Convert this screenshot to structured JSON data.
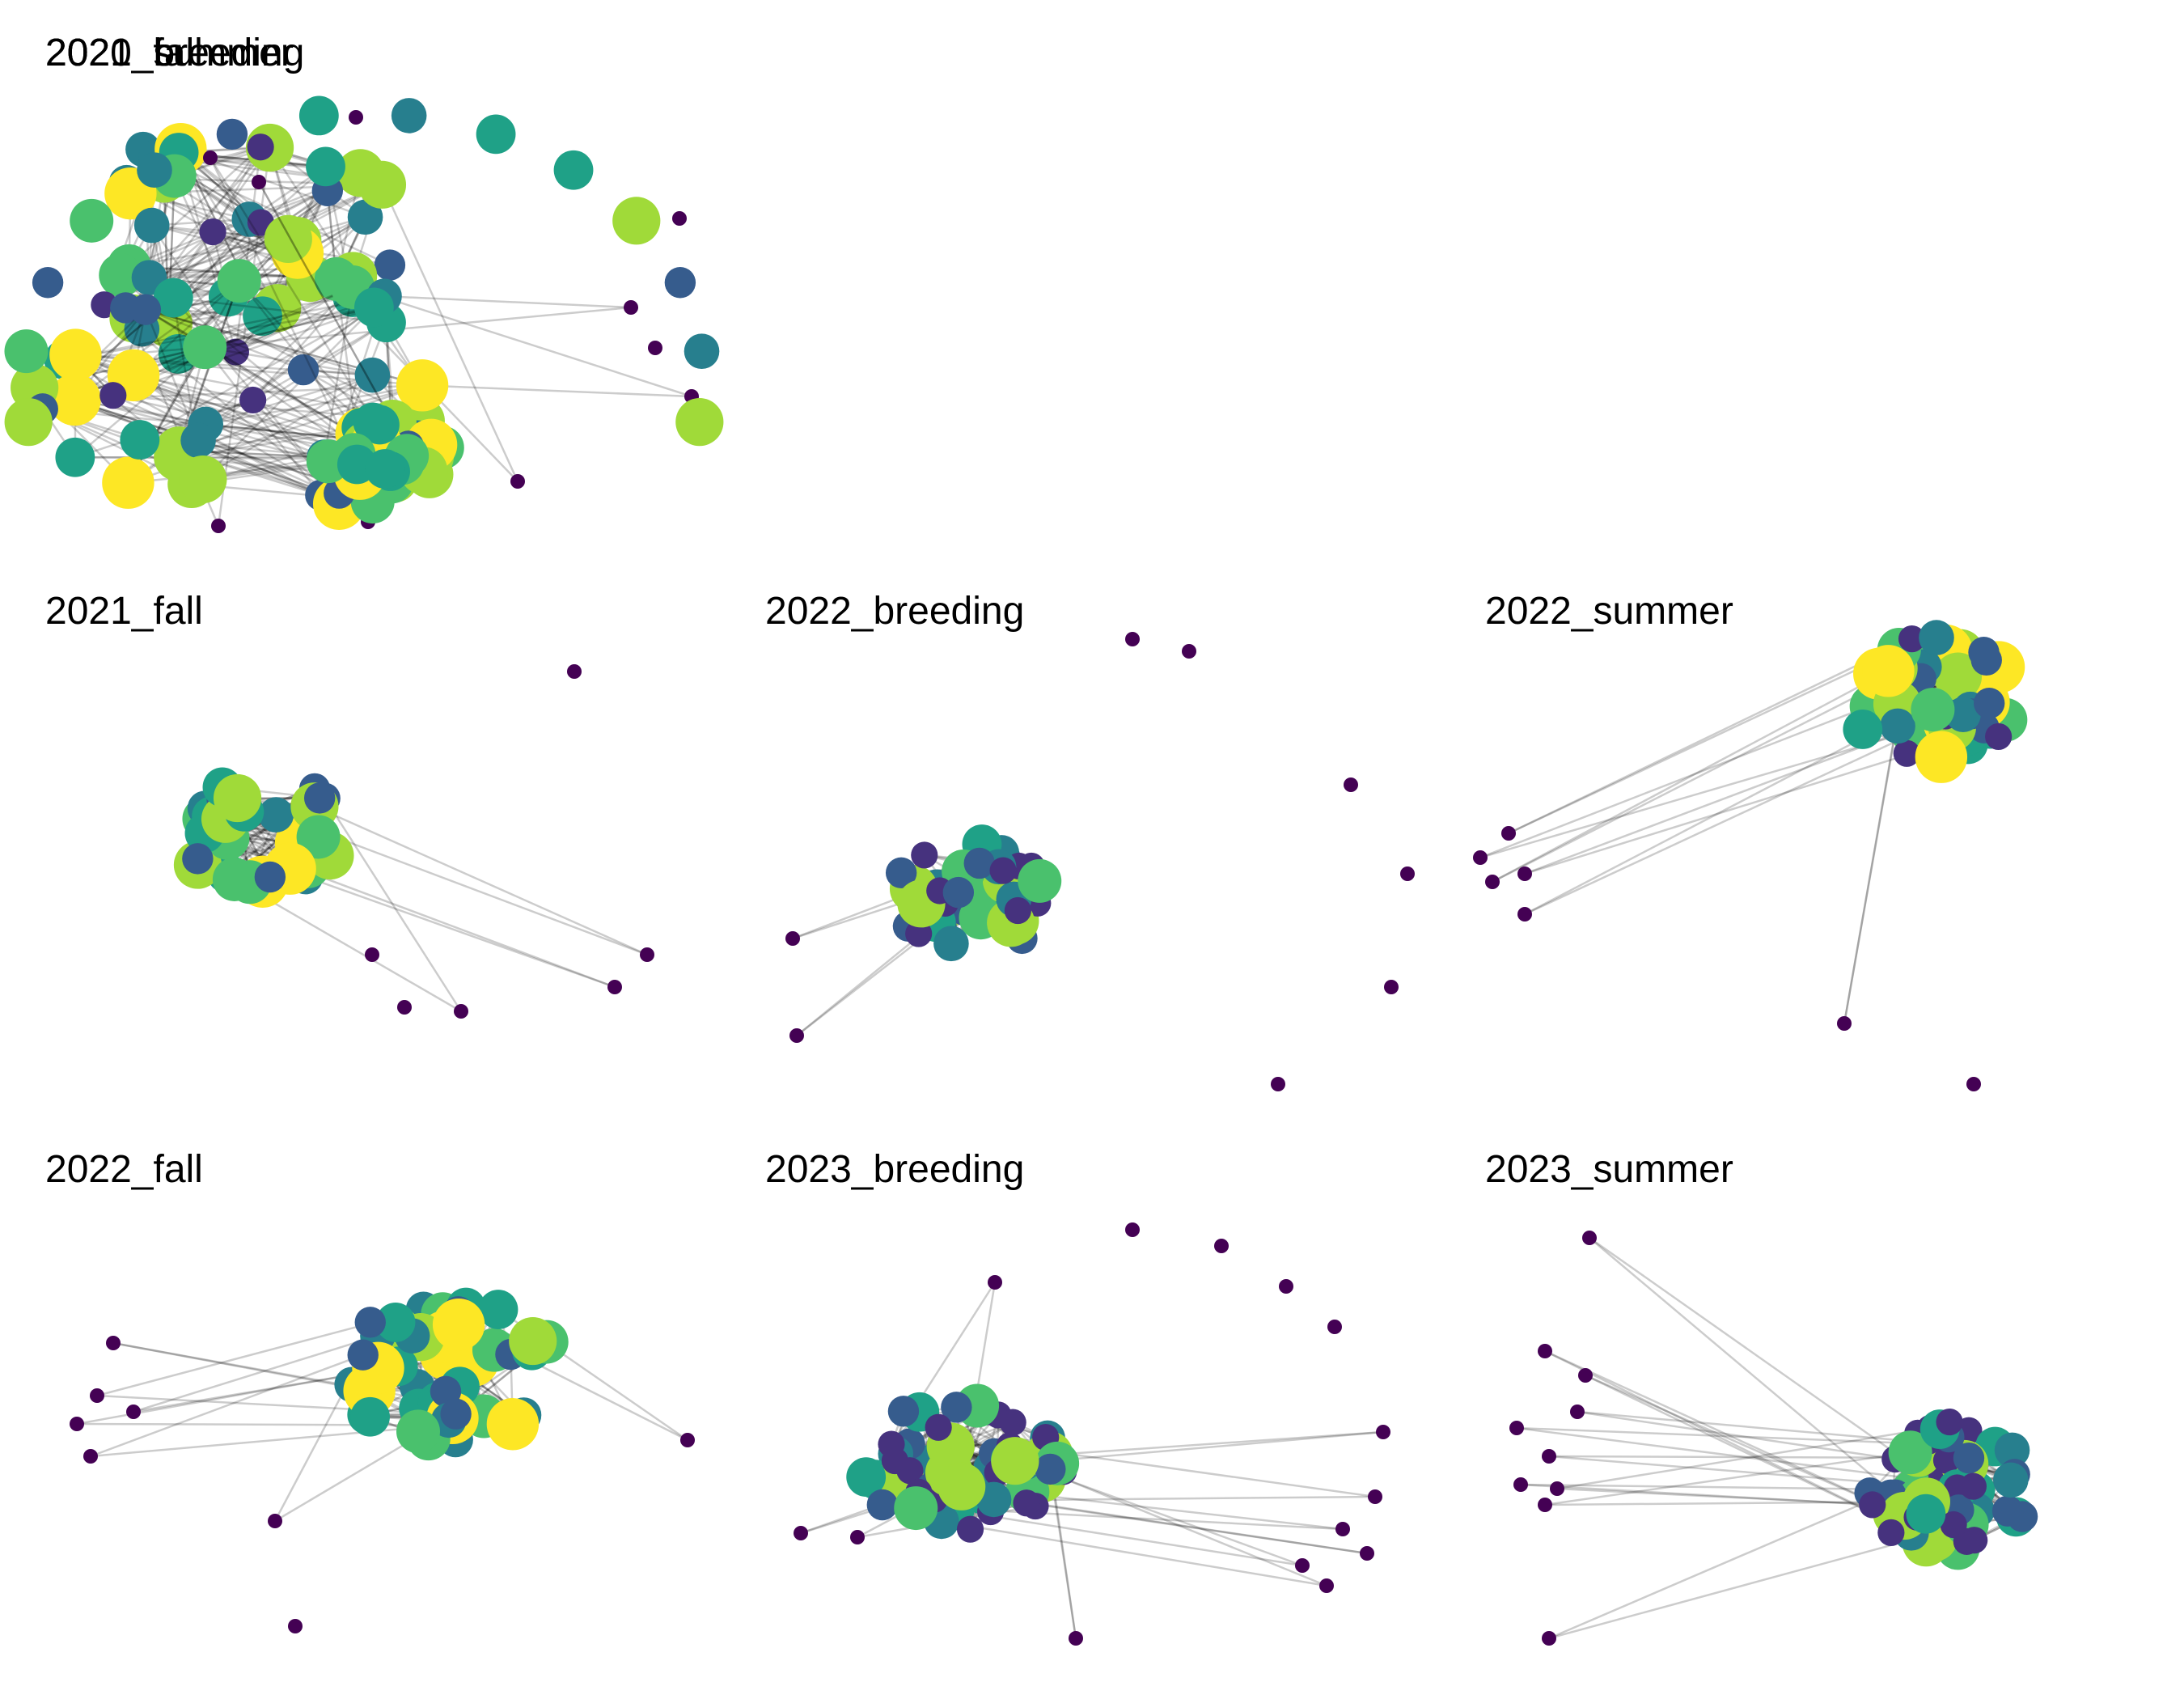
{
  "figure": {
    "panels": [
      {
        "title": "2020_fall",
        "seed": 11,
        "cluster_nodes": 40,
        "isolates": 3,
        "pendant_chain": 3,
        "cluster_spread": "loose",
        "color_mix": "mixed"
      },
      {
        "title": "2021_breeding",
        "seed": 23,
        "cluster_nodes": 38,
        "isolates": 1,
        "pendant_chain": 2,
        "cluster_spread": "loose",
        "color_mix": "mixed"
      },
      {
        "title": "2021_summer",
        "seed": 37,
        "cluster_nodes": 30,
        "isolates": 14,
        "pendant_chain": 2,
        "cluster_spread": "tight",
        "color_mix": "bright"
      },
      {
        "title": "2021_fall",
        "seed": 41,
        "cluster_nodes": 32,
        "isolates": 3,
        "pendant_chain": 3,
        "cluster_spread": "tight",
        "color_mix": "bright"
      },
      {
        "title": "2022_breeding",
        "seed": 53,
        "cluster_nodes": 45,
        "isolates": 6,
        "pendant_chain": 2,
        "cluster_spread": "tight",
        "color_mix": "dark"
      },
      {
        "title": "2022_summer",
        "seed": 67,
        "cluster_nodes": 45,
        "isolates": 1,
        "pendant_chain": 6,
        "cluster_spread": "tight",
        "color_mix": "mixed"
      },
      {
        "title": "2022_fall",
        "seed": 71,
        "cluster_nodes": 45,
        "isolates": 1,
        "pendant_chain": 7,
        "cluster_spread": "tight",
        "color_mix": "bright"
      },
      {
        "title": "2023_breeding",
        "seed": 83,
        "cluster_nodes": 55,
        "isolates": 4,
        "pendant_chain": 10,
        "cluster_spread": "tight",
        "color_mix": "dark"
      },
      {
        "title": "2023_summer",
        "seed": 97,
        "cluster_nodes": 55,
        "isolates": 0,
        "pendant_chain": 10,
        "cluster_spread": "tight",
        "color_mix": "dark"
      }
    ],
    "palette": [
      "#440154",
      "#46327e",
      "#365c8d",
      "#277f8e",
      "#1fa187",
      "#4ac16d",
      "#a0da39",
      "#fde725"
    ],
    "edge_color": "#000000"
  }
}
